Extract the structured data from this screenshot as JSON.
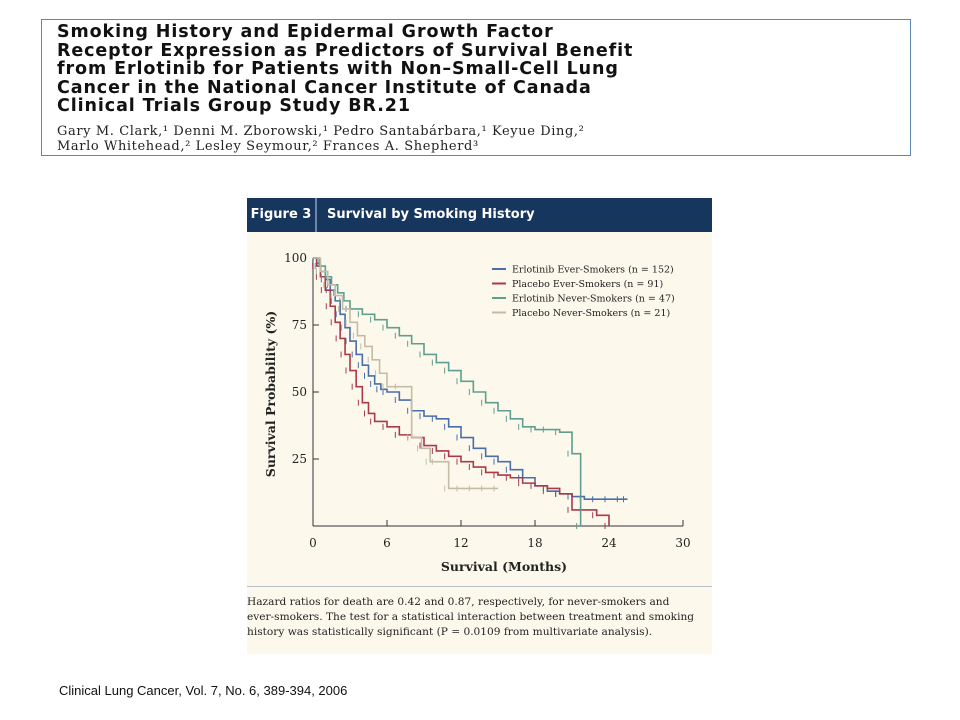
{
  "paper": {
    "title": "Smoking History and Epidermal Growth Factor\nReceptor Expression as Predictors of Survival Benefit\nfrom Erlotinib for Patients with Non–Small-Cell Lung\nCancer in the National Cancer Institute of Canada\nClinical Trials Group Study BR.21",
    "authors": "Gary M. Clark,¹ Denni M. Zborowski,¹ Pedro Santabárbara,¹ Keyue Ding,²\nMarlo Whitehead,² Lesley Seymour,² Frances A. Shepherd³"
  },
  "figure": {
    "label": "Figure 3",
    "title": "Survival by Smoking History",
    "caption": "Hazard ratios for death are 0.42 and 0.87, respectively, for never-smokers and\never-smokers. The test for a statistical interaction between treatment and smoking\nhistory was statistically significant (P = 0.0109 from multivariate analysis)."
  },
  "citation": "Clinical Lung Cancer, Vol. 7, No. 6, 389-394, 2006",
  "chart_data": {
    "type": "line",
    "step": true,
    "xlabel": "Survival (Months)",
    "ylabel": "Survival Probability (%)",
    "xlim": [
      0,
      30
    ],
    "ylim": [
      0,
      100
    ],
    "xticks": [
      0,
      6,
      12,
      18,
      24,
      30
    ],
    "yticks": [
      25,
      50,
      75,
      100
    ],
    "grid": false,
    "legend_position": "top-right",
    "series": [
      {
        "name": "Erlotinib Ever-Smokers (n = 152)",
        "color": "#4a6ea8",
        "x": [
          0,
          0.3,
          0.6,
          1,
          1.4,
          1.8,
          2.2,
          2.6,
          3,
          3.5,
          4,
          4.5,
          5,
          5.5,
          6,
          7,
          8,
          9,
          10,
          11,
          12,
          13,
          14,
          15,
          16,
          17,
          18,
          19,
          20,
          21,
          22,
          23,
          24,
          25,
          25.5
        ],
        "y": [
          100,
          98,
          95,
          92,
          88,
          84,
          79,
          74,
          69,
          64,
          60,
          56,
          53,
          51,
          50,
          47,
          43,
          41,
          40,
          37,
          33,
          29,
          26,
          24,
          21,
          18,
          15,
          13,
          12,
          11,
          10,
          10,
          10,
          10,
          10
        ]
      },
      {
        "name": "Placebo Ever-Smokers (n = 91)",
        "color": "#a83a4a",
        "x": [
          0,
          0.3,
          0.6,
          1,
          1.4,
          1.8,
          2.2,
          2.6,
          3,
          3.5,
          4,
          4.5,
          5,
          6,
          7,
          8,
          9,
          10,
          11,
          12,
          13,
          14,
          15,
          16,
          17,
          18,
          19,
          20,
          21,
          22,
          23,
          24
        ],
        "y": [
          100,
          97,
          93,
          88,
          82,
          76,
          70,
          64,
          58,
          52,
          46,
          42,
          39,
          37,
          34,
          33,
          30,
          28,
          26,
          24,
          22,
          20,
          19,
          18,
          16,
          15,
          14,
          12,
          6,
          6,
          4,
          0
        ]
      },
      {
        "name": "Erlotinib Never-Smokers (n = 47)",
        "color": "#5f9e90",
        "x": [
          0,
          0.5,
          1,
          1.5,
          2,
          2.5,
          3,
          4,
          5,
          6,
          7,
          8,
          9,
          10,
          11,
          12,
          13,
          14,
          15,
          16,
          17,
          18,
          19,
          20,
          21,
          21.7
        ],
        "y": [
          100,
          97,
          93,
          90,
          87,
          84,
          81,
          79,
          77,
          74,
          71,
          68,
          64,
          61,
          58,
          54,
          50,
          46,
          43,
          40,
          37,
          36,
          36,
          35,
          27,
          0
        ]
      },
      {
        "name": "Placebo Never-Smokers (n = 21)",
        "color": "#c4bda5",
        "x": [
          0,
          0.6,
          1.2,
          1.8,
          2.4,
          3,
          3.6,
          4.2,
          4.8,
          5.4,
          6,
          7,
          8,
          8.8,
          9.5,
          10,
          11,
          12,
          13,
          14,
          15
        ],
        "y": [
          100,
          95,
          90,
          86,
          81,
          76,
          71,
          67,
          62,
          57,
          52,
          52,
          33,
          29,
          24,
          24,
          14,
          14,
          14,
          14,
          14
        ]
      }
    ]
  }
}
